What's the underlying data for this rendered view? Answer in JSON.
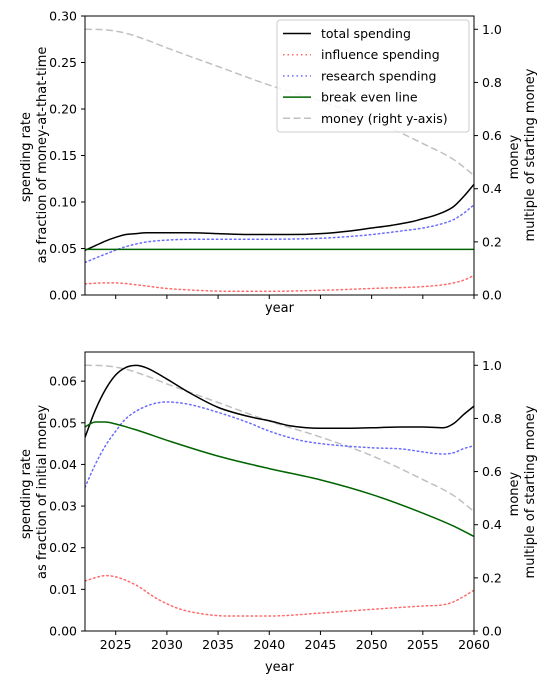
{
  "chart_data": [
    {
      "type": "line",
      "title": "",
      "xlabel": "year",
      "ylabel": "spending rate\nas fraction of money-at-that-time",
      "ylabel_right": "money\nmultiple of starting money",
      "xlim": [
        2022,
        2060
      ],
      "ylim": [
        0,
        0.3
      ],
      "ylim_right": [
        0,
        1.05
      ],
      "xticks": [
        2025,
        2030,
        2035,
        2040,
        2045,
        2050,
        2055,
        2060
      ],
      "show_xticklabels": false,
      "yticks": [
        0,
        0.05,
        0.1,
        0.15,
        0.2,
        0.25,
        0.3
      ],
      "ytick_labels": [
        "0.00",
        "0.05",
        "0.10",
        "0.15",
        "0.20",
        "0.25",
        "0.30"
      ],
      "yticks_right": [
        0,
        0.2,
        0.4,
        0.6,
        0.8,
        1.0
      ],
      "ytick_labels_right": [
        "0.0",
        "0.2",
        "0.4",
        "0.6",
        "0.8",
        "1.0"
      ],
      "grid": false,
      "legend_position": "top-right",
      "series": [
        {
          "name": "total spending",
          "axis": "left",
          "color": "#000000",
          "style": "solid",
          "x": [
            2022,
            2023,
            2024,
            2025,
            2026,
            2027,
            2028,
            2030,
            2032,
            2035,
            2038,
            2040,
            2042,
            2045,
            2048,
            2050,
            2052,
            2054,
            2055,
            2056,
            2057,
            2058,
            2059,
            2060
          ],
          "y": [
            0.048,
            0.053,
            0.058,
            0.062,
            0.065,
            0.066,
            0.067,
            0.067,
            0.067,
            0.066,
            0.065,
            0.065,
            0.065,
            0.066,
            0.069,
            0.072,
            0.075,
            0.079,
            0.082,
            0.085,
            0.089,
            0.095,
            0.106,
            0.119
          ]
        },
        {
          "name": "influence spending",
          "axis": "left",
          "color": "#ff6b6b",
          "style": "dotted",
          "x": [
            2022,
            2024,
            2025,
            2027,
            2030,
            2033,
            2036,
            2040,
            2045,
            2050,
            2055,
            2057,
            2058,
            2059,
            2060
          ],
          "y": [
            0.012,
            0.013,
            0.013,
            0.011,
            0.007,
            0.005,
            0.004,
            0.004,
            0.005,
            0.007,
            0.009,
            0.011,
            0.013,
            0.016,
            0.021
          ]
        },
        {
          "name": "research spending",
          "axis": "left",
          "color": "#6b6bff",
          "style": "dotted",
          "x": [
            2022,
            2024,
            2026,
            2028,
            2030,
            2033,
            2036,
            2040,
            2045,
            2048,
            2050,
            2053,
            2055,
            2057,
            2058,
            2059,
            2060
          ],
          "y": [
            0.035,
            0.044,
            0.052,
            0.057,
            0.059,
            0.06,
            0.06,
            0.06,
            0.061,
            0.063,
            0.065,
            0.069,
            0.072,
            0.077,
            0.081,
            0.088,
            0.097
          ]
        },
        {
          "name": "break even line",
          "axis": "left",
          "color": "#006400",
          "style": "solid",
          "x": [
            2022,
            2060
          ],
          "y": [
            0.049,
            0.049
          ]
        },
        {
          "name": "money (right y-axis)",
          "axis": "right",
          "color": "#c0c0c0",
          "style": "dashed",
          "x": [
            2022,
            2024,
            2026,
            2028,
            2030,
            2035,
            2040,
            2045,
            2050,
            2055,
            2058,
            2060
          ],
          "y": [
            1.0,
            0.998,
            0.985,
            0.96,
            0.93,
            0.86,
            0.79,
            0.73,
            0.66,
            0.57,
            0.51,
            0.45
          ]
        }
      ]
    },
    {
      "type": "line",
      "title": "",
      "xlabel": "year",
      "ylabel": "spending rate\nas fraction of initial money",
      "ylabel_right": "money\nmultiple of starting money",
      "xlim": [
        2022,
        2060
      ],
      "ylim": [
        0,
        0.067
      ],
      "ylim_right": [
        0,
        1.05
      ],
      "xticks": [
        2025,
        2030,
        2035,
        2040,
        2045,
        2050,
        2055,
        2060
      ],
      "xtick_labels": [
        "2025",
        "2030",
        "2035",
        "2040",
        "2045",
        "2050",
        "2055",
        "2060"
      ],
      "show_xticklabels": true,
      "yticks": [
        0,
        0.01,
        0.02,
        0.03,
        0.04,
        0.05,
        0.06
      ],
      "ytick_labels": [
        "0.00",
        "0.01",
        "0.02",
        "0.03",
        "0.04",
        "0.05",
        "0.06"
      ],
      "yticks_right": [
        0,
        0.2,
        0.4,
        0.6,
        0.8,
        1.0
      ],
      "ytick_labels_right": [
        "0.0",
        "0.2",
        "0.4",
        "0.6",
        "0.8",
        "1.0"
      ],
      "grid": false,
      "series": [
        {
          "name": "total spending",
          "axis": "left",
          "color": "#000000",
          "style": "solid",
          "x": [
            2022,
            2023,
            2024,
            2025,
            2026,
            2027,
            2028,
            2030,
            2032,
            2035,
            2038,
            2040,
            2042,
            2045,
            2048,
            2050,
            2053,
            2055,
            2057,
            2058,
            2059,
            2060
          ],
          "y": [
            0.0465,
            0.053,
            0.058,
            0.0615,
            0.0633,
            0.0638,
            0.0632,
            0.0605,
            0.0575,
            0.0537,
            0.0515,
            0.0505,
            0.0493,
            0.0487,
            0.0487,
            0.0488,
            0.049,
            0.049,
            0.0488,
            0.0498,
            0.052,
            0.054
          ]
        },
        {
          "name": "influence spending",
          "axis": "left",
          "color": "#ff6b6b",
          "style": "dotted",
          "x": [
            2022,
            2023,
            2024,
            2025,
            2027,
            2029,
            2031,
            2033,
            2036,
            2040,
            2045,
            2050,
            2055,
            2057,
            2058,
            2059,
            2060
          ],
          "y": [
            0.012,
            0.0128,
            0.0133,
            0.013,
            0.011,
            0.0078,
            0.0055,
            0.0043,
            0.0036,
            0.0036,
            0.0043,
            0.0052,
            0.006,
            0.0063,
            0.007,
            0.0083,
            0.0098
          ]
        },
        {
          "name": "research spending",
          "axis": "left",
          "color": "#6b6bff",
          "style": "dotted",
          "x": [
            2022,
            2023,
            2024,
            2025,
            2026,
            2028,
            2030,
            2032,
            2035,
            2038,
            2040,
            2043,
            2045,
            2050,
            2053,
            2055,
            2057,
            2058,
            2059,
            2060
          ],
          "y": [
            0.0345,
            0.04,
            0.0445,
            0.048,
            0.051,
            0.054,
            0.055,
            0.0545,
            0.0525,
            0.05,
            0.048,
            0.0458,
            0.045,
            0.044,
            0.0437,
            0.043,
            0.0425,
            0.0428,
            0.0438,
            0.0445
          ]
        },
        {
          "name": "break even line",
          "axis": "left",
          "color": "#006400",
          "style": "solid",
          "x": [
            2022,
            2023,
            2024,
            2025,
            2027,
            2030,
            2035,
            2040,
            2045,
            2050,
            2055,
            2058,
            2060
          ],
          "y": [
            0.049,
            0.0502,
            0.0502,
            0.0497,
            0.0483,
            0.0458,
            0.042,
            0.039,
            0.0363,
            0.0328,
            0.0283,
            0.0252,
            0.0227
          ]
        },
        {
          "name": "money (right y-axis)",
          "axis": "right",
          "color": "#c0c0c0",
          "style": "dashed",
          "x": [
            2022,
            2024,
            2026,
            2028,
            2030,
            2035,
            2040,
            2045,
            2050,
            2055,
            2058,
            2060
          ],
          "y": [
            1.0,
            0.998,
            0.985,
            0.96,
            0.93,
            0.86,
            0.79,
            0.73,
            0.66,
            0.57,
            0.51,
            0.45
          ]
        }
      ]
    }
  ]
}
